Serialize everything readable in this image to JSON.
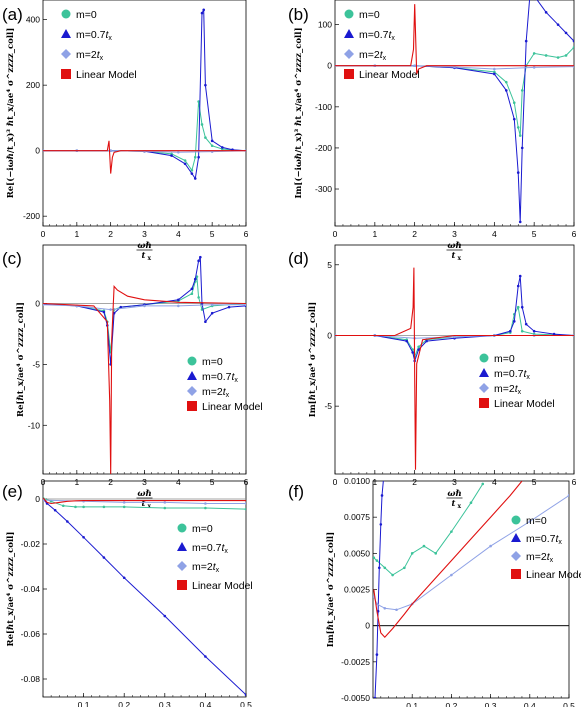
{
  "legend_labels": [
    "m=0",
    "m=0.7",
    "m=2",
    "Linear Model"
  ],
  "legend_sub": [
    "",
    "t",
    "t",
    ""
  ],
  "legend_sub_x": [
    "",
    "x",
    "x",
    ""
  ],
  "xlabel_num": "ωℏ",
  "xlabel_den": "t",
  "xlabel_den_sub": "x",
  "colors": {
    "m0": "#3cc39a",
    "m07": "#1a1ad0",
    "m2": "#8fa2e6",
    "linear": "#e01010",
    "axis": "#888888"
  },
  "chart_data": [
    {
      "type": "line",
      "label": "(a)",
      "ylabel": "Re[(−iωℏ/t_x)³ ℏt_x/ae⁴ σ^zzzz_coll]",
      "xlim": [
        0,
        6
      ],
      "ylim": [
        -230,
        460
      ],
      "xticks": [
        "0",
        "1",
        "2",
        "3",
        "4",
        "5",
        "6"
      ],
      "xtick_values": [
        0,
        1,
        2,
        3,
        4,
        5,
        6
      ],
      "yticks": [
        "-200",
        "0",
        "200",
        "400"
      ],
      "ytick_values": [
        -200,
        0,
        200,
        400
      ],
      "series": [
        {
          "name": "m=0",
          "x": [
            0,
            1,
            2,
            3,
            3.8,
            4.2,
            4.4,
            4.5,
            4.6,
            4.7,
            4.8,
            5.0,
            5.3,
            5.6,
            6.0
          ],
          "y": [
            0,
            0,
            0,
            -2,
            -10,
            -30,
            -60,
            -20,
            150,
            80,
            40,
            15,
            5,
            2,
            0
          ]
        },
        {
          "name": "m=0.7t_x",
          "x": [
            0,
            1,
            2,
            3,
            3.8,
            4.2,
            4.4,
            4.5,
            4.6,
            4.7,
            4.75,
            4.8,
            5.0,
            5.3,
            5.6,
            6.0
          ],
          "y": [
            0,
            0,
            0,
            -2,
            -15,
            -40,
            -70,
            -85,
            -20,
            420,
            430,
            200,
            30,
            10,
            3,
            0
          ]
        },
        {
          "name": "m=2t_x",
          "x": [
            0,
            1,
            2,
            3,
            4,
            5,
            6
          ],
          "y": [
            0,
            0,
            0,
            -2,
            -5,
            -3,
            0
          ]
        },
        {
          "name": "Linear Model",
          "x": [
            0,
            1.9,
            1.95,
            2.0,
            2.05,
            2.1,
            2.3,
            3,
            6
          ],
          "y": [
            0,
            0,
            30,
            -70,
            -20,
            -5,
            0,
            0,
            0
          ]
        }
      ]
    },
    {
      "type": "line",
      "label": "(b)",
      "ylabel": "Im[(−iωℏ/t_x)³ ℏt_x/ae⁴ σ^zzzz_coll]",
      "xlim": [
        0,
        6
      ],
      "ylim": [
        -390,
        160
      ],
      "xticks": [
        "0",
        "1",
        "2",
        "3",
        "4",
        "5",
        "6"
      ],
      "xtick_values": [
        0,
        1,
        2,
        3,
        4,
        5,
        6
      ],
      "yticks": [
        "-300",
        "-200",
        "-100",
        "0",
        "100"
      ],
      "ytick_values": [
        -300,
        -200,
        -100,
        0,
        100
      ],
      "series": [
        {
          "name": "m=0",
          "x": [
            0,
            1,
            2,
            3,
            4,
            4.3,
            4.5,
            4.6,
            4.65,
            4.7,
            4.8,
            5.0,
            5.3,
            5.6,
            5.8,
            6.0
          ],
          "y": [
            0,
            0,
            0,
            -5,
            -15,
            -40,
            -90,
            -150,
            -170,
            -60,
            0,
            30,
            25,
            20,
            25,
            45
          ]
        },
        {
          "name": "m=0.7t_x",
          "x": [
            0,
            1,
            2,
            3,
            4,
            4.3,
            4.5,
            4.6,
            4.65,
            4.7,
            4.8,
            4.9,
            5.0,
            5.3,
            5.6,
            5.8,
            6.0
          ],
          "y": [
            0,
            0,
            0,
            -5,
            -20,
            -60,
            -130,
            -260,
            -380,
            -200,
            60,
            180,
            170,
            130,
            100,
            80,
            60
          ]
        },
        {
          "name": "m=2t_x",
          "x": [
            0,
            1,
            2,
            3,
            4,
            5,
            6
          ],
          "y": [
            0,
            0,
            0,
            -3,
            -8,
            -4,
            -2
          ]
        },
        {
          "name": "Linear Model",
          "x": [
            0,
            1.9,
            1.97,
            2.0,
            2.05,
            2.1,
            2.3,
            3,
            6
          ],
          "y": [
            0,
            0,
            40,
            150,
            -20,
            -8,
            0,
            0,
            0
          ]
        }
      ]
    },
    {
      "type": "line",
      "label": "(c)",
      "ylabel": "Re[ℏt_x/ae⁴ σ^zzzz_coll]",
      "xlim": [
        0,
        6
      ],
      "ylim": [
        -14,
        4.8
      ],
      "xticks": [
        "0",
        "1",
        "2",
        "3",
        "4",
        "5",
        "6"
      ],
      "xtick_values": [
        0,
        1,
        2,
        3,
        4,
        5,
        6
      ],
      "yticks": [
        "-10",
        "-5",
        "0"
      ],
      "ytick_values": [
        -10,
        -5,
        0
      ],
      "series": [
        {
          "name": "m=0",
          "x": [
            0,
            1,
            1.8,
            1.9,
            2.0,
            2.1,
            2.3,
            3,
            4,
            4.4,
            4.5,
            4.55,
            4.6,
            4.7,
            5,
            6
          ],
          "y": [
            -0.05,
            -0.2,
            -0.6,
            -1.5,
            -4,
            -0.5,
            -0.3,
            -0.1,
            0.2,
            0.8,
            1.8,
            2.2,
            0.5,
            -0.5,
            -0.2,
            0
          ]
        },
        {
          "name": "m=0.7t_x",
          "x": [
            0,
            1,
            1.8,
            1.9,
            2.0,
            2.1,
            2.3,
            3,
            4,
            4.4,
            4.5,
            4.6,
            4.65,
            4.7,
            4.8,
            5.0,
            5.5,
            6
          ],
          "y": [
            -0.05,
            -0.2,
            -0.7,
            -1.8,
            -5,
            -0.8,
            -0.3,
            -0.1,
            0.3,
            1.2,
            2,
            3.5,
            3.8,
            0,
            -1.5,
            -0.8,
            -0.3,
            -0.2
          ]
        },
        {
          "name": "m=2t_x",
          "x": [
            0,
            1,
            2,
            3,
            4,
            5,
            6
          ],
          "y": [
            -0.1,
            -0.2,
            -0.5,
            -0.2,
            -0.2,
            -0.1,
            -0.1
          ]
        },
        {
          "name": "Linear Model",
          "x": [
            0,
            1.5,
            1.9,
            1.97,
            2.0,
            2.03,
            2.1,
            2.2,
            2.5,
            3,
            4,
            6
          ],
          "y": [
            0,
            -0.2,
            -1.5,
            -8,
            -14,
            -3,
            1.4,
            1.1,
            0.6,
            0.3,
            0.1,
            0
          ]
        }
      ]
    },
    {
      "type": "line",
      "label": "(d)",
      "ylabel": "Im[ℏt_x/ae⁴ σ^zzzz_coll]",
      "xlim": [
        0,
        6
      ],
      "ylim": [
        -9.8,
        6.4
      ],
      "xticks": [
        "0",
        "1",
        "2",
        "3",
        "4",
        "5",
        "6"
      ],
      "xtick_values": [
        0,
        1,
        2,
        3,
        4,
        5,
        6
      ],
      "yticks": [
        "-5",
        "0",
        "5"
      ],
      "ytick_values": [
        -5,
        0,
        5
      ],
      "series": [
        {
          "name": "m=0",
          "x": [
            0,
            1,
            1.8,
            1.95,
            2.0,
            2.1,
            2.3,
            3,
            4,
            4.4,
            4.5,
            4.6,
            4.7,
            5,
            6
          ],
          "y": [
            0,
            0,
            -0.3,
            -1,
            -1.5,
            -0.8,
            -0.3,
            -0.1,
            0,
            0.2,
            1.5,
            2,
            0.3,
            0.1,
            0
          ]
        },
        {
          "name": "m=0.7t_x",
          "x": [
            0,
            1,
            1.8,
            1.95,
            2.0,
            2.1,
            2.3,
            3,
            4,
            4.4,
            4.5,
            4.6,
            4.65,
            4.7,
            4.8,
            5.0,
            5.5,
            6
          ],
          "y": [
            0,
            0,
            -0.4,
            -1.2,
            -1.8,
            -1,
            -0.4,
            -0.2,
            0,
            0.3,
            1,
            3.5,
            4.2,
            2,
            0.8,
            0.3,
            0.1,
            0
          ]
        },
        {
          "name": "m=2t_x",
          "x": [
            0,
            1,
            2,
            3,
            4,
            5,
            6
          ],
          "y": [
            0,
            0,
            -0.2,
            -0.1,
            0,
            0,
            0
          ]
        },
        {
          "name": "Linear Model",
          "x": [
            0,
            1.5,
            1.9,
            1.96,
            1.98,
            2.0,
            2.02,
            2.05,
            2.2,
            3,
            6
          ],
          "y": [
            0,
            0,
            0.5,
            2,
            4.8,
            -3,
            -9.5,
            -2,
            -0.3,
            0,
            0
          ]
        }
      ]
    },
    {
      "type": "line",
      "label": "(e)",
      "ylabel": "Re[ℏt_x/ae⁴ σ^zzzz_coll]",
      "xlim": [
        0,
        0.5
      ],
      "ylim": [
        -0.088,
        0.008
      ],
      "xticks": [
        "0.1",
        "0.2",
        "0.3",
        "0.4",
        "0.5"
      ],
      "xtick_values": [
        0.1,
        0.2,
        0.3,
        0.4,
        0.5
      ],
      "yticks": [
        "0",
        "-0.02",
        "-0.04",
        "-0.06",
        "-0.08"
      ],
      "ytick_values": [
        0,
        -0.02,
        -0.04,
        -0.06,
        -0.08
      ],
      "series": [
        {
          "name": "m=0",
          "x": [
            0,
            0.02,
            0.05,
            0.08,
            0.1,
            0.15,
            0.2,
            0.3,
            0.4,
            0.5
          ],
          "y": [
            0.0005,
            -0.001,
            -0.003,
            -0.0035,
            -0.0035,
            -0.0035,
            -0.0035,
            -0.004,
            -0.004,
            -0.0045
          ]
        },
        {
          "name": "m=0.7t_x",
          "x": [
            0,
            0.01,
            0.03,
            0.06,
            0.1,
            0.15,
            0.2,
            0.3,
            0.4,
            0.5
          ],
          "y": [
            0,
            -0.002,
            -0.005,
            -0.01,
            -0.017,
            -0.026,
            -0.035,
            -0.052,
            -0.07,
            -0.087
          ]
        },
        {
          "name": "m=2t_x",
          "x": [
            0,
            0.1,
            0.2,
            0.3,
            0.4,
            0.5
          ],
          "y": [
            -0.0005,
            -0.001,
            -0.0015,
            -0.0015,
            -0.002,
            -0.002
          ]
        },
        {
          "name": "Linear Model",
          "x": [
            0,
            0.01,
            0.02,
            0.04,
            0.06,
            0.08,
            0.1,
            0.2,
            0.3,
            0.4,
            0.5
          ],
          "y": [
            0.0005,
            -0.0015,
            -0.002,
            -0.0015,
            -0.001,
            -0.0008,
            -0.0007,
            -0.0007,
            -0.0007,
            -0.0007,
            -0.0007
          ]
        }
      ]
    },
    {
      "type": "line",
      "label": "(f)",
      "ylabel": "Im[ℏt_x/ae⁴ σ^zzzz_coll]",
      "xlim": [
        0,
        0.5
      ],
      "ylim": [
        -0.005,
        0.01
      ],
      "xticks": [
        "0.1",
        "0.2",
        "0.3",
        "0.4",
        "0.5"
      ],
      "xtick_values": [
        0.1,
        0.2,
        0.3,
        0.4,
        0.5
      ],
      "yticks": [
        "-0.0050",
        "-0.0025",
        "0",
        "0.0025",
        "0.0050",
        "0.0075",
        "0.0100"
      ],
      "ytick_values": [
        -0.005,
        -0.0025,
        0,
        0.0025,
        0.005,
        0.0075,
        0.01
      ],
      "series": [
        {
          "name": "m=0",
          "x": [
            0.002,
            0.01,
            0.03,
            0.05,
            0.08,
            0.1,
            0.13,
            0.16,
            0.2,
            0.25,
            0.28
          ],
          "y": [
            0.0047,
            0.0045,
            0.004,
            0.0035,
            0.004,
            0.005,
            0.0055,
            0.005,
            0.0065,
            0.0085,
            0.0098
          ]
        },
        {
          "name": "m=0.7t_x",
          "x": [
            0.005,
            0.01,
            0.013,
            0.016,
            0.02,
            0.023,
            0.027
          ],
          "y": [
            -0.005,
            -0.002,
            0.001,
            0.004,
            0.007,
            0.009,
            0.0102
          ]
        },
        {
          "name": "m=2t_x",
          "x": [
            0.002,
            0.01,
            0.03,
            0.06,
            0.1,
            0.2,
            0.3,
            0.4,
            0.5
          ],
          "y": [
            0.002,
            0.0015,
            0.0012,
            0.0011,
            0.0015,
            0.0035,
            0.0055,
            0.0072,
            0.009
          ]
        },
        {
          "name": "Linear Model",
          "x": [
            0.002,
            0.01,
            0.02,
            0.03,
            0.05,
            0.08,
            0.1,
            0.15,
            0.2,
            0.25,
            0.3,
            0.35,
            0.38
          ],
          "y": [
            0.0025,
            0.001,
            -0.0005,
            -0.0008,
            -0.0002,
            0.0008,
            0.0015,
            0.003,
            0.0045,
            0.006,
            0.0075,
            0.009,
            0.01
          ]
        }
      ]
    }
  ]
}
